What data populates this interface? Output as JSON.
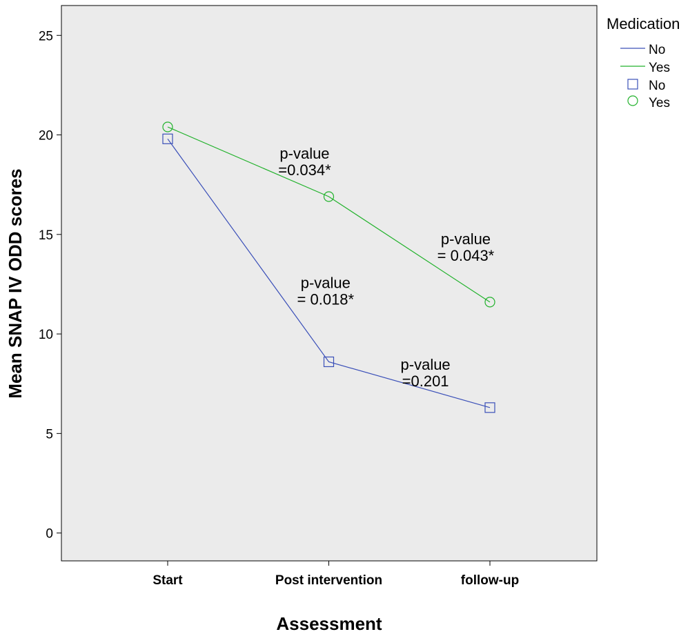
{
  "chart_data": {
    "type": "line",
    "xlabel": "Assessment",
    "ylabel": "Mean SNAP IV ODD scores",
    "categories": [
      "Start",
      "Post intervention",
      "follow-up"
    ],
    "ylim": [
      -1.4,
      26.5
    ],
    "yticks": [
      0,
      5,
      10,
      15,
      20,
      25
    ],
    "grid": false,
    "background": "#ebebeb",
    "series": [
      {
        "name": "No",
        "values": [
          19.8,
          8.6,
          6.3
        ],
        "color": "#3a4fb8",
        "marker": "square"
      },
      {
        "name": "Yes",
        "values": [
          20.4,
          16.9,
          11.6
        ],
        "color": "#22b22c",
        "marker": "circle"
      }
    ],
    "legend": {
      "title": "Medication",
      "position": "top-right",
      "line_entries": [
        "No",
        "Yes"
      ],
      "marker_entries": [
        "No",
        "Yes"
      ]
    },
    "annotations": [
      {
        "lines": [
          "p-value",
          "=0.034*"
        ],
        "x": 0.85,
        "y": 18.8
      },
      {
        "lines": [
          "p-value",
          "= 0.043*"
        ],
        "x": 1.85,
        "y": 14.5
      },
      {
        "lines": [
          "p-value",
          "= 0.018*"
        ],
        "x": 0.98,
        "y": 12.3
      },
      {
        "lines": [
          "p-value",
          "=0.201"
        ],
        "x": 1.6,
        "y": 8.2
      }
    ]
  }
}
